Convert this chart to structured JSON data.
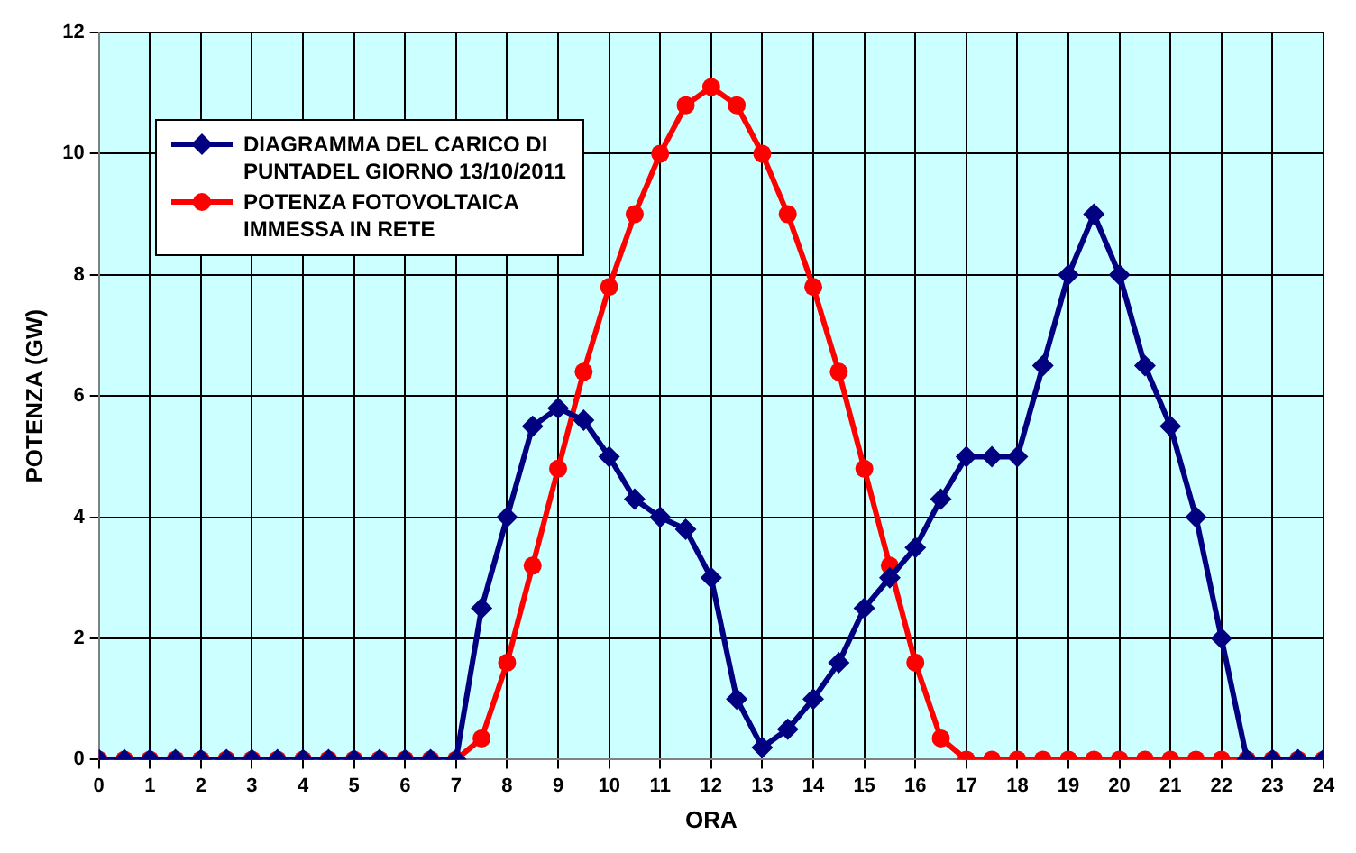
{
  "chart_data": {
    "type": "line",
    "xlabel": "ORA",
    "ylabel": "POTENZA (GW)",
    "x": [
      0,
      0.5,
      1,
      1.5,
      2,
      2.5,
      3,
      3.5,
      4,
      4.5,
      5,
      5.5,
      6,
      6.5,
      7,
      7.5,
      8,
      8.5,
      9,
      9.5,
      10,
      10.5,
      11,
      11.5,
      12,
      12.5,
      13,
      13.5,
      14,
      14.5,
      15,
      15.5,
      16,
      16.5,
      17,
      17.5,
      18,
      18.5,
      19,
      19.5,
      20,
      20.5,
      21,
      21.5,
      22,
      22.5,
      23,
      23.5,
      24
    ],
    "series": [
      {
        "name": "DIAGRAMMA DEL CARICO DI PUNTADEL GIORNO 13/10/2011",
        "color": "#000080",
        "marker": "diamond",
        "values": [
          0,
          0,
          0,
          0,
          0,
          0,
          0,
          0,
          0,
          0,
          0,
          0,
          0,
          0,
          0,
          2.5,
          4,
          5.5,
          5.8,
          5.6,
          5,
          4.3,
          4,
          3.8,
          3,
          1,
          0.2,
          0.5,
          1,
          1.6,
          2.5,
          3,
          3.5,
          4.3,
          5,
          5,
          5,
          6.5,
          8,
          9,
          8,
          6.5,
          5.5,
          4,
          2,
          0,
          0,
          0,
          0
        ]
      },
      {
        "name": "POTENZA FOTOVOLTAICA IMMESSA IN RETE",
        "color": "#ff0000",
        "marker": "circle",
        "values": [
          0,
          0,
          0,
          0,
          0,
          0,
          0,
          0,
          0,
          0,
          0,
          0,
          0,
          0,
          0,
          0.35,
          1.6,
          3.2,
          4.8,
          6.4,
          7.8,
          9,
          10,
          10.8,
          11.1,
          10.8,
          10,
          9,
          7.8,
          6.4,
          4.8,
          3.2,
          1.6,
          0.35,
          0,
          0,
          0,
          0,
          0,
          0,
          0,
          0,
          0,
          0,
          0,
          0,
          0,
          0,
          0
        ]
      }
    ],
    "xlim": [
      0,
      24
    ],
    "xticks": [
      0,
      1,
      2,
      3,
      4,
      5,
      6,
      7,
      8,
      9,
      10,
      11,
      12,
      13,
      14,
      15,
      16,
      17,
      18,
      19,
      20,
      21,
      22,
      23,
      24
    ],
    "ylim": [
      0,
      12
    ],
    "yticks": [
      0,
      2,
      4,
      6,
      8,
      10,
      12
    ],
    "grid": true,
    "legend": "top left",
    "line_style": "solid"
  }
}
